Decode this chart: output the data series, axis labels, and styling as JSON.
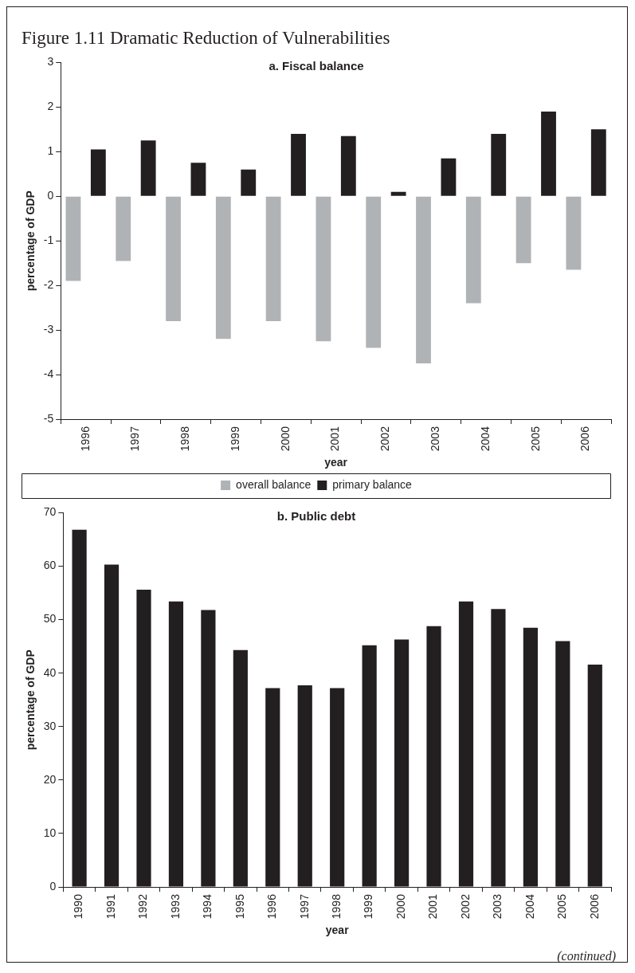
{
  "chart_data": [
    {
      "type": "bar",
      "title": "a. Fiscal balance",
      "xlabel": "year",
      "ylabel": "percentage of GDP",
      "annotations": [
        "Figure 1.11 Dramatic Reduction of Vulnerabilities"
      ],
      "categories": [
        "1996",
        "1997",
        "1998",
        "1999",
        "2000",
        "2001",
        "2002",
        "2003",
        "2004",
        "2005",
        "2006"
      ],
      "series": [
        {
          "name": "overall balance",
          "color": "#b0b3b6",
          "values": [
            -1.9,
            -1.45,
            -2.8,
            -3.2,
            -2.8,
            -3.25,
            -3.4,
            -3.75,
            -2.4,
            -1.5,
            -1.65
          ]
        },
        {
          "name": "primary balance",
          "color": "#231f20",
          "values": [
            1.05,
            1.25,
            0.75,
            0.6,
            1.4,
            1.35,
            0.1,
            0.85,
            1.4,
            1.9,
            1.5
          ]
        }
      ],
      "ylim": [
        -5,
        3
      ],
      "yticks": [
        -5,
        -4,
        -3,
        -2,
        -1,
        0,
        1,
        2,
        3
      ],
      "grid": false,
      "legend": "bottom"
    },
    {
      "type": "bar",
      "title": "b. Public debt",
      "xlabel": "year",
      "ylabel": "percentage of GDP",
      "annotations": [
        "(continued)"
      ],
      "categories": [
        "1990",
        "1991",
        "1992",
        "1993",
        "1994",
        "1995",
        "1996",
        "1997",
        "1998",
        "1999",
        "2000",
        "2001",
        "2002",
        "2003",
        "2004",
        "2005",
        "2006"
      ],
      "values": [
        66.8,
        60.3,
        55.6,
        53.4,
        51.8,
        44.3,
        37.2,
        37.7,
        37.2,
        45.2,
        46.3,
        48.8,
        53.4,
        52.0,
        48.5,
        46.0,
        41.6
      ],
      "color": "#231f20",
      "ylim": [
        0,
        70
      ],
      "yticks": [
        0,
        10,
        20,
        30,
        40,
        50,
        60,
        70
      ],
      "grid": false,
      "legend": false
    }
  ]
}
